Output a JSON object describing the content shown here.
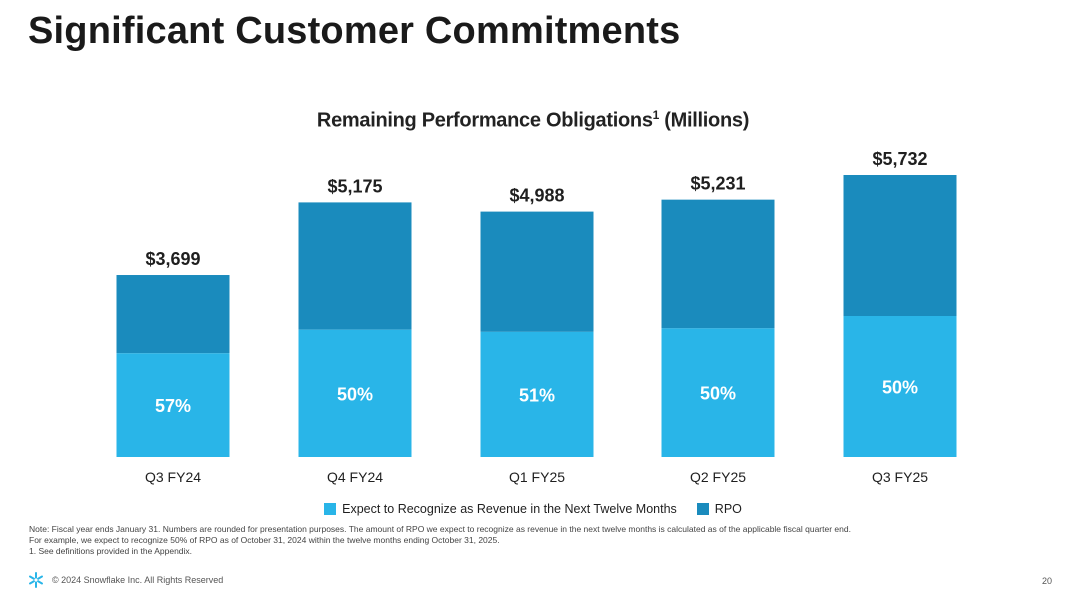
{
  "page": {
    "title": "Significant Customer Commitments",
    "chart_title": "Remaining Performance Obligations",
    "chart_title_superscript": "1",
    "chart_title_suffix": " (Millions)",
    "notes": [
      "Note: Fiscal year ends January 31. Numbers are rounded for presentation purposes. The amount of RPO we expect to recognize as revenue in the next twelve months is calculated as of the applicable fiscal quarter end.",
      "For example, we expect to recognize 50% of RPO as of October 31, 2024 within the twelve months ending October 31, 2025.",
      "1.  See definitions provided in the Appendix."
    ],
    "copyright": "© 2024 Snowflake Inc. All Rights Reserved",
    "page_number": "20",
    "logo_icon": "snowflake-logo-icon"
  },
  "colors": {
    "next_twelve_months": "#29b5e8",
    "rpo": "#1a8bbd",
    "logo": "#29b5e8"
  },
  "chart_data": {
    "type": "bar",
    "stacked": true,
    "title": "Remaining Performance Obligations1 (Millions)",
    "categories": [
      "Q3 FY24",
      "Q4 FY24",
      "Q1 FY25",
      "Q2 FY25",
      "Q3 FY25"
    ],
    "totals": [
      3699,
      5175,
      4988,
      5231,
      5732
    ],
    "total_labels": [
      "$3,699",
      "$5,175",
      "$4,988",
      "$5,231",
      "$5,732"
    ],
    "next_twelve_months_share": [
      0.57,
      0.5,
      0.51,
      0.5,
      0.5
    ],
    "share_labels": [
      "57%",
      "50%",
      "51%",
      "50%",
      "50%"
    ],
    "series": [
      {
        "name": "Expect to Recognize as Revenue in the Next Twelve Months",
        "values": [
          2108,
          2588,
          2544,
          2616,
          2866
        ]
      },
      {
        "name": "RPO",
        "values": [
          1591,
          2587,
          2444,
          2615,
          2866
        ]
      }
    ],
    "ylim": [
      0,
      5732
    ],
    "grid": false,
    "legend": "bottom"
  }
}
